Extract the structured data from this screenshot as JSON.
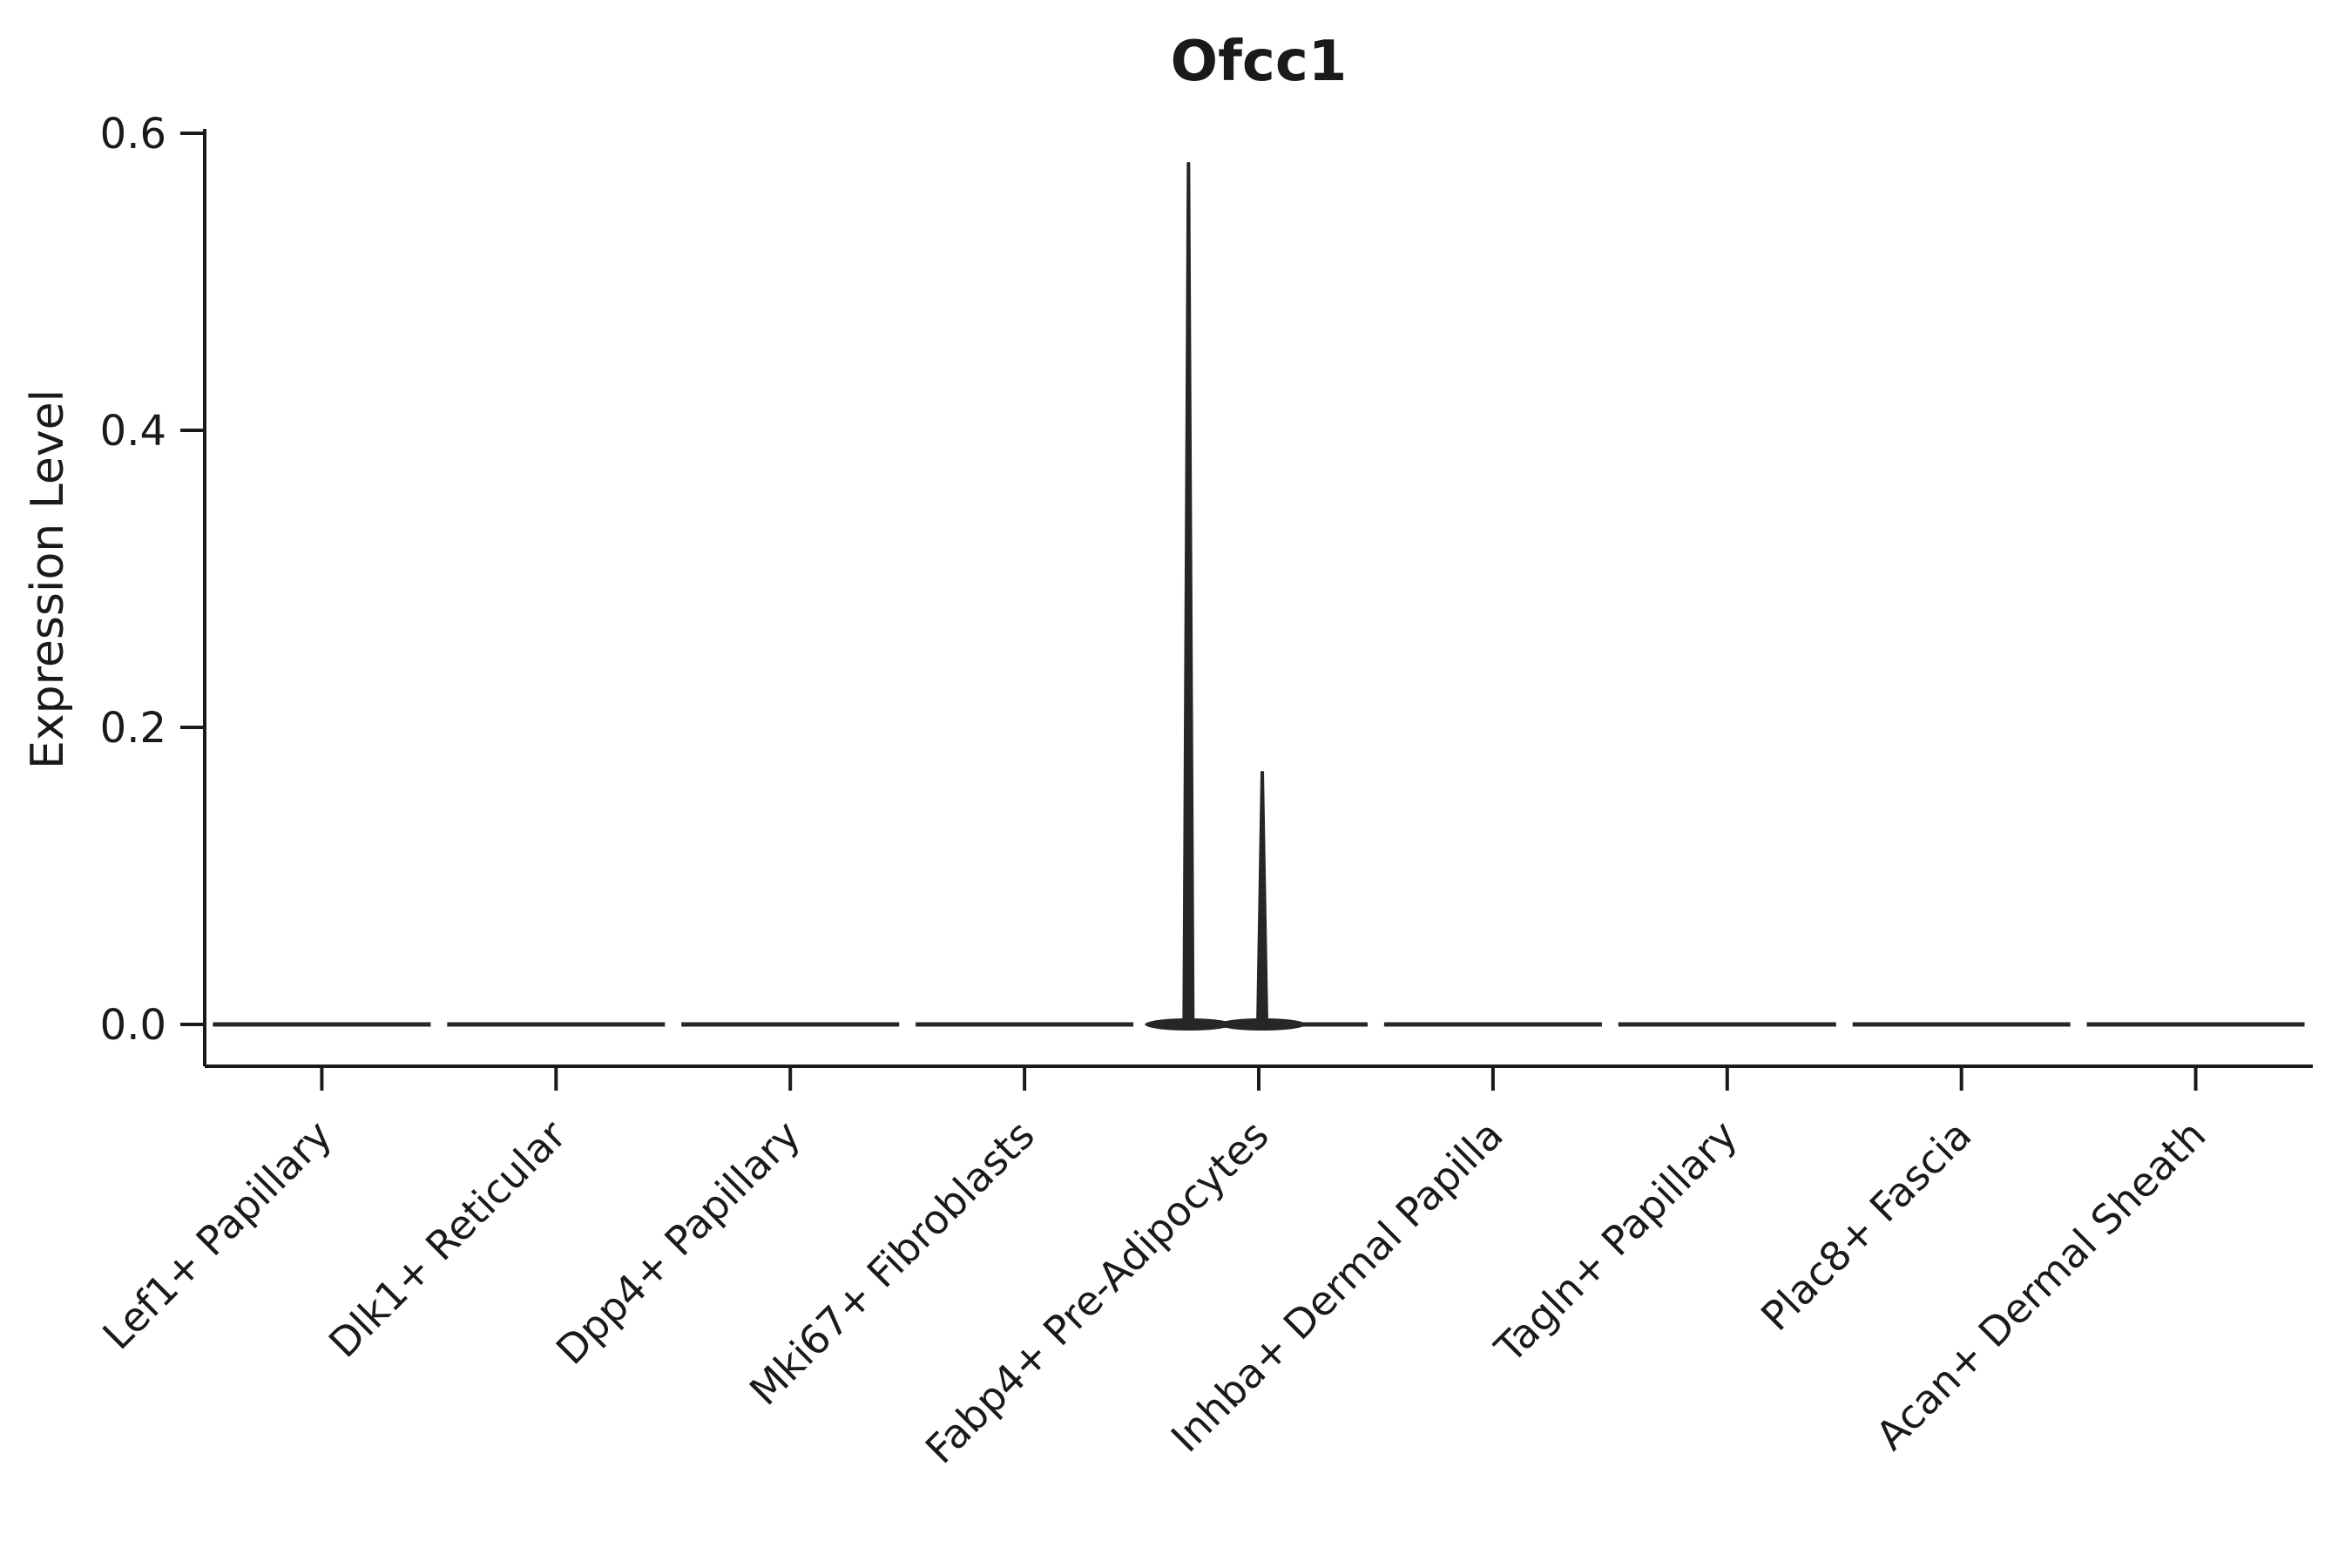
{
  "chart_data": {
    "type": "violin",
    "title": "Ofcc1",
    "ylabel": "Expression Level",
    "xlabel": "",
    "ylim": [
      0,
      0.6
    ],
    "yticks": [
      0.0,
      0.2,
      0.4,
      0.6
    ],
    "ytick_labels": [
      "0.0",
      "0.2",
      "0.4",
      "0.6"
    ],
    "grid": false,
    "legend": "none",
    "categories": [
      "Lef1+ Papillary",
      "Dlk1+ Reticular",
      "Dpp4+ Papillary",
      "Mki67+ Fibroblasts",
      "Fabp4+ Pre-Adipocytes",
      "Inhba+ Dermal Papilla",
      "Tagln+ Papillary",
      "Plac8+ Fascia",
      "Acan+ Dermal Sheath"
    ],
    "violins": [
      {
        "category": "Lef1+ Papillary",
        "shape": "flat",
        "max": 0.0
      },
      {
        "category": "Dlk1+ Reticular",
        "shape": "flat",
        "max": 0.0
      },
      {
        "category": "Dpp4+ Papillary",
        "shape": "flat",
        "max": 0.0
      },
      {
        "category": "Mki67+ Fibroblasts",
        "shape": "flat",
        "max": 0.0
      },
      {
        "category": "Fabp4+ Pre-Adipocytes",
        "shape": "spikes",
        "max": 0.58,
        "spikes": [
          {
            "value": 0.58,
            "offset_frac": -0.3
          },
          {
            "value": 0.17,
            "offset_frac": 0.015
          }
        ]
      },
      {
        "category": "Inhba+ Dermal Papilla",
        "shape": "flat",
        "max": 0.0
      },
      {
        "category": "Tagln+ Papillary",
        "shape": "flat",
        "max": 0.0
      },
      {
        "category": "Plac8+ Fascia",
        "shape": "flat",
        "max": 0.0
      },
      {
        "category": "Acan+ Dermal Sheath",
        "shape": "flat",
        "max": 0.0
      }
    ],
    "colors": {
      "line": "#1a1a1a",
      "violin": "#262626",
      "background": "#ffffff"
    }
  }
}
